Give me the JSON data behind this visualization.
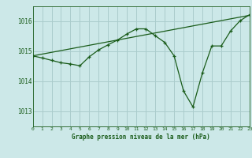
{
  "background_color": "#cce8e8",
  "plot_bg_color": "#cce8e8",
  "grid_color": "#aacccc",
  "line_color": "#1a5c1a",
  "title": "Graphe pression niveau de la mer (hPa)",
  "xlim": [
    0,
    23
  ],
  "ylim": [
    1012.5,
    1016.5
  ],
  "yticks": [
    1013,
    1014,
    1015,
    1016
  ],
  "xticks": [
    0,
    1,
    2,
    3,
    4,
    5,
    6,
    7,
    8,
    9,
    10,
    11,
    12,
    13,
    14,
    15,
    16,
    17,
    18,
    19,
    20,
    21,
    22,
    23
  ],
  "series1_x": [
    0,
    23
  ],
  "series1_y": [
    1014.85,
    1016.2
  ],
  "series2_x": [
    0,
    1,
    2,
    3,
    4,
    5,
    6,
    7,
    8,
    9,
    10,
    11,
    12,
    13,
    14,
    15,
    16,
    17,
    18,
    19,
    20,
    21,
    22,
    23
  ],
  "series2_y": [
    1014.85,
    1014.78,
    1014.7,
    1014.62,
    1014.58,
    1014.52,
    1014.82,
    1015.05,
    1015.22,
    1015.38,
    1015.58,
    1015.75,
    1015.75,
    1015.52,
    1015.3,
    1014.85,
    1013.68,
    1013.15,
    1014.28,
    1015.18,
    1015.18,
    1015.68,
    1016.02,
    1016.22
  ]
}
